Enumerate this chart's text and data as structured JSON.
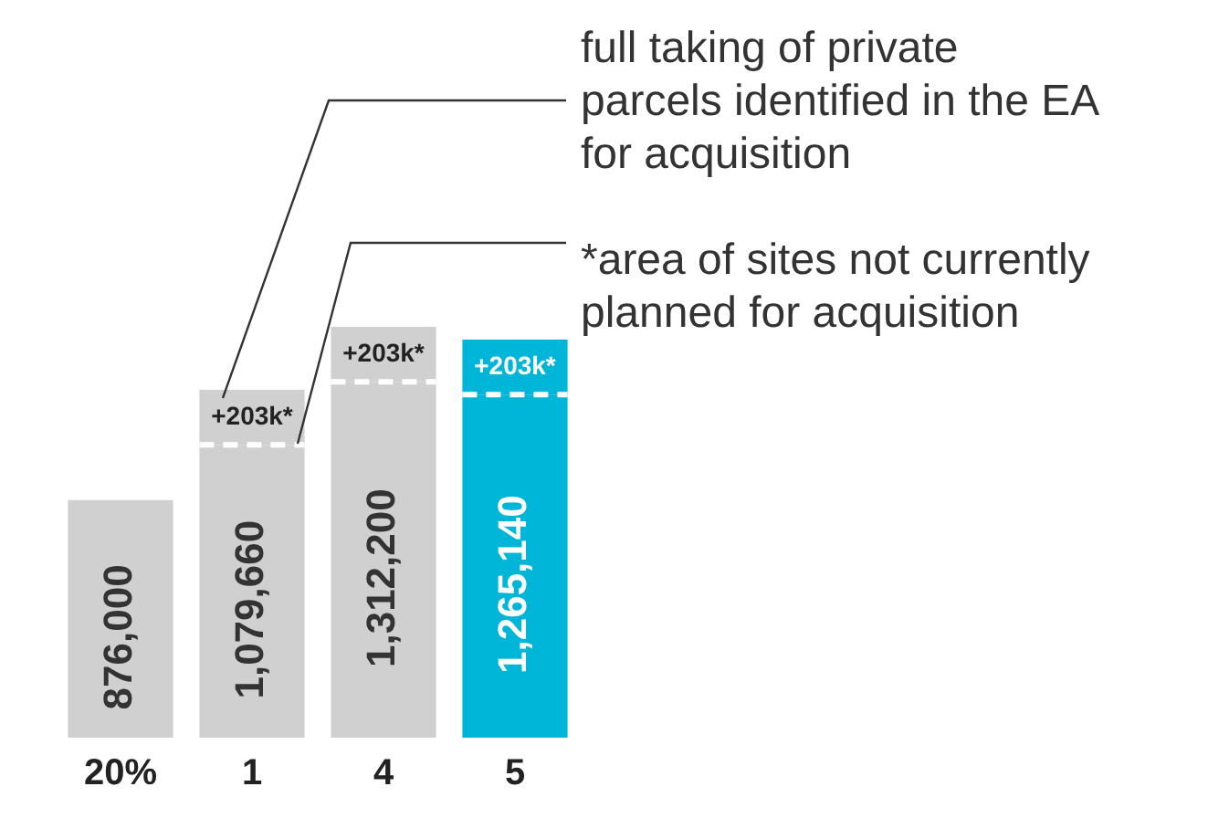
{
  "chart_data": {
    "type": "bar",
    "stacked": true,
    "categories": [
      "20%",
      "1",
      "4",
      "5"
    ],
    "series": [
      {
        "colors": [
          "#d0d0d0",
          "#d0d0d0",
          "#d0d0d0",
          "#00b6d8"
        ],
        "values": [
          876000,
          1079660,
          1312200,
          1265140
        ],
        "value_labels": [
          "876,000",
          "1,079,660",
          "1,312,200",
          "1,265,140"
        ]
      },
      {
        "colors": [
          "#d0d0d0",
          "#d0d0d0",
          "#d0d0d0",
          "#00b6d8"
        ],
        "values": [
          null,
          203000,
          203000,
          203000
        ],
        "value_labels": [
          null,
          "+203k*",
          "+203k*",
          "+203k*"
        ]
      }
    ],
    "annotations": [
      "full taking of private parcels identified in the EA for acquisition",
      "*area of sites not currently planned for acquisition"
    ],
    "legend": false,
    "grid": false
  }
}
